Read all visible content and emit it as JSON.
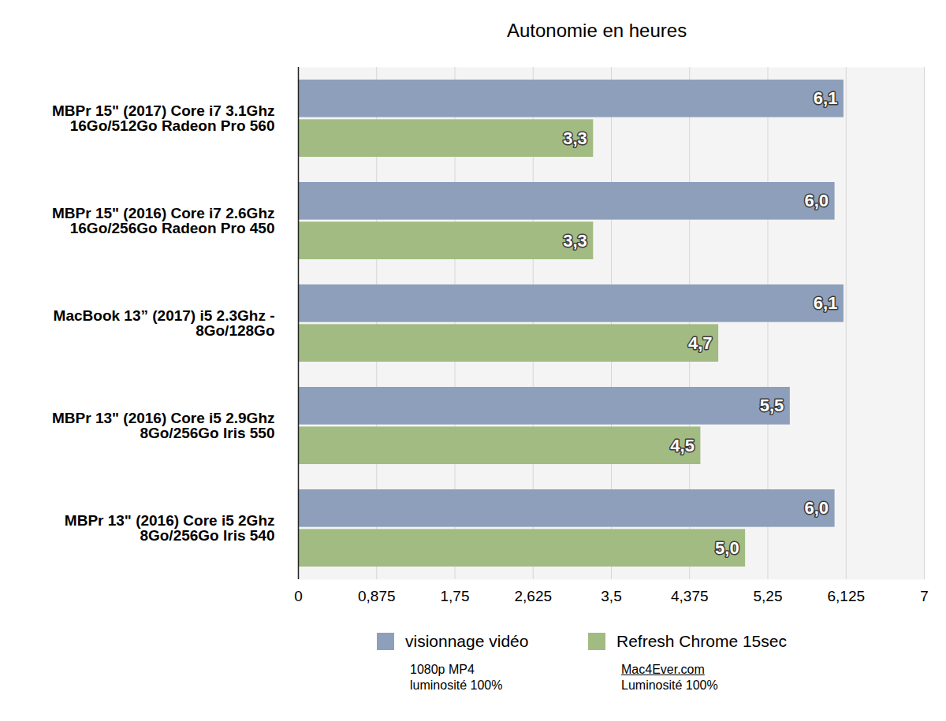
{
  "chart_data": {
    "type": "bar",
    "orientation": "horizontal",
    "title": "Autonomie en heures",
    "categories": [
      "MBPr 15\" (2017) Core i7 3.1Ghz\n16Go/512Go Radeon Pro 560",
      "MBPr 15\" (2016) Core i7 2.6Ghz\n16Go/256Go Radeon Pro 450",
      "MacBook 13” (2017) i5 2.3Ghz -\n8Go/128Go",
      "MBPr 13\" (2016) Core i5 2.9Ghz\n8Go/256Go Iris 550",
      "MBPr 13\" (2016) Core i5 2Ghz\n8Go/256Go Iris 540"
    ],
    "series": [
      {
        "name": "visionnage vidéo",
        "color": "#8d9fba",
        "values": [
          6.1,
          6.0,
          6.1,
          5.5,
          6.0
        ],
        "value_labels": [
          "6,1",
          "6,0",
          "6,1",
          "5,5",
          "6,0"
        ],
        "notes": [
          "1080p MP4",
          "luminosité 100%"
        ]
      },
      {
        "name": "Refresh Chrome 15sec",
        "color": "#a2bb82",
        "values": [
          3.3,
          3.3,
          4.7,
          4.5,
          5.0
        ],
        "value_labels": [
          "3,3",
          "3,3",
          "4,7",
          "4,5",
          "5,0"
        ],
        "notes": [
          "Mac4Ever.com",
          "Luminosité 100%"
        ]
      }
    ],
    "xlim": [
      0,
      7
    ],
    "xticks": [
      0,
      {
        "value": 0.875,
        "label": "0,875"
      },
      {
        "value": 1.75,
        "label": "1,75"
      },
      {
        "value": 2.625,
        "label": "2,625"
      },
      {
        "value": 3.5,
        "label": "3,5"
      },
      {
        "value": 4.375,
        "label": "4,375"
      },
      {
        "value": 5.25,
        "label": "5,25"
      },
      {
        "value": 6.125,
        "label": "6,125"
      },
      7
    ],
    "grid": true,
    "data_labels": true,
    "legend": "bottom"
  }
}
